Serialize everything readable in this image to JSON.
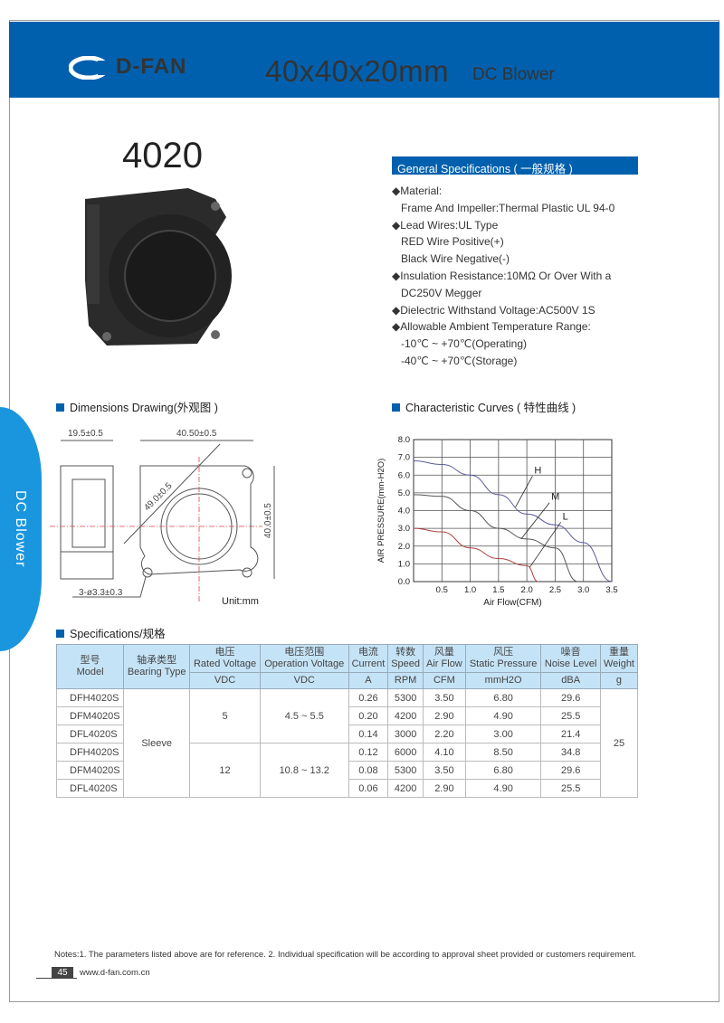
{
  "header": {
    "brand": "D-FAN",
    "size": "40x40x20mm",
    "product_type": "DC Blower",
    "brand_color": "#0060ae"
  },
  "side_tab": "DC Blower",
  "model": "4020",
  "general": {
    "title": "General Specifications ( 一般规格 )",
    "lines": [
      {
        "text": "◆Material:",
        "indent": false
      },
      {
        "text": "Frame And Impeller:Thermal Plastic UL 94-0",
        "indent": true
      },
      {
        "text": "◆Lead Wires:UL Type",
        "indent": false
      },
      {
        "text": "RED Wire Positive(+)",
        "indent": true
      },
      {
        "text": "Black Wire Negative(-)",
        "indent": true
      },
      {
        "text": "◆Insulation Resistance:10MΩ  Or Over With a",
        "indent": false
      },
      {
        "text": "DC250V Megger",
        "indent": true
      },
      {
        "text": "◆Dielectric Withstand Voltage:AC500V 1S",
        "indent": false
      },
      {
        "text": "◆Allowable Ambient Temperature Range:",
        "indent": false
      },
      {
        "text": "-10℃ ~ +70℃(Operating)",
        "indent": true
      },
      {
        "text": "-40℃ ~ +70℃(Storage)",
        "indent": true
      }
    ]
  },
  "dimensions": {
    "title": "Dimensions Drawing(外观图 )",
    "depth": "19.5±0.5",
    "width": "40.50±0.5",
    "diagonal": "49.0±0.5",
    "height": "40.0±0.5",
    "holes": "3-ø3.3±0.3",
    "unit": "Unit:mm"
  },
  "chart_data": {
    "type": "line",
    "title": "Characteristic Curves ( 特性曲线 )",
    "xlabel": "Air Flow(CFM)",
    "ylabel": "AIR PRESSURE(mm-H2O)",
    "xlim": [
      0,
      3.5
    ],
    "ylim": [
      0,
      8
    ],
    "grid": true,
    "xticks": [
      "0.5",
      "1.0",
      "1.5",
      "2.0",
      "2.5",
      "3.0",
      "3.5"
    ],
    "yticks": [
      "0.0",
      "1.0",
      "2.0",
      "3.0",
      "4.0",
      "5.0",
      "6.0",
      "7.0",
      "8.0"
    ],
    "series": [
      {
        "name": "H",
        "color": "#5a5a9a",
        "points": [
          [
            0,
            6.8
          ],
          [
            0.5,
            6.6
          ],
          [
            1,
            6.0
          ],
          [
            1.5,
            4.9
          ],
          [
            2,
            3.8
          ],
          [
            2.5,
            3.2
          ],
          [
            3,
            2.2
          ],
          [
            3.5,
            0
          ]
        ]
      },
      {
        "name": "M",
        "color": "#555555",
        "points": [
          [
            0,
            4.9
          ],
          [
            0.5,
            4.8
          ],
          [
            1,
            4.0
          ],
          [
            1.5,
            3.0
          ],
          [
            2,
            2.4
          ],
          [
            2.5,
            1.9
          ],
          [
            2.9,
            0
          ]
        ]
      },
      {
        "name": "L",
        "color": "#b04040",
        "points": [
          [
            0,
            3.0
          ],
          [
            0.5,
            2.8
          ],
          [
            1,
            1.9
          ],
          [
            1.5,
            1.3
          ],
          [
            2,
            0.9
          ],
          [
            2.2,
            0
          ]
        ]
      }
    ]
  },
  "specs": {
    "title": "Specifications/规格",
    "headers": [
      [
        "型号",
        "Model"
      ],
      [
        "轴承类型",
        "Bearing Type"
      ],
      [
        "电压",
        "Rated Voltage"
      ],
      [
        "电压范围",
        "Operation Voltage"
      ],
      [
        "电流",
        "Current"
      ],
      [
        "转数",
        "Speed"
      ],
      [
        "风量",
        "Air Flow"
      ],
      [
        "风压",
        "Static Pressure"
      ],
      [
        "噪音",
        "Noise Level"
      ],
      [
        "重量",
        "Weight"
      ]
    ],
    "units": [
      "VDC",
      "VDC",
      "A",
      "RPM",
      "CFM",
      "mmH2O",
      "dBA",
      "g"
    ],
    "bearing": "Sleeve",
    "weight": "25",
    "groups": [
      {
        "voltage": "5",
        "range": "4.5 ~ 5.5"
      },
      {
        "voltage": "12",
        "range": "10.8 ~ 13.2"
      }
    ],
    "rows": [
      [
        "DFH4020S",
        "0.26",
        "5300",
        "3.50",
        "6.80",
        "29.6"
      ],
      [
        "DFM4020S",
        "0.20",
        "4200",
        "2.90",
        "4.90",
        "25.5"
      ],
      [
        "DFL4020S",
        "0.14",
        "3000",
        "2.20",
        "3.00",
        "21.4"
      ],
      [
        "DFH4020S",
        "0.12",
        "6000",
        "4.10",
        "8.50",
        "34.8"
      ],
      [
        "DFM4020S",
        "0.08",
        "5300",
        "3.50",
        "6.80",
        "29.6"
      ],
      [
        "DFL4020S",
        "0.06",
        "4200",
        "2.90",
        "4.90",
        "25.5"
      ]
    ]
  },
  "footer": {
    "notes": "Notes:1. The parameters listed above are for reference.    2. Individual specification will be according to approval sheet provided or customers requirement.",
    "page": "45",
    "url": "www.d-fan.com.cn"
  }
}
